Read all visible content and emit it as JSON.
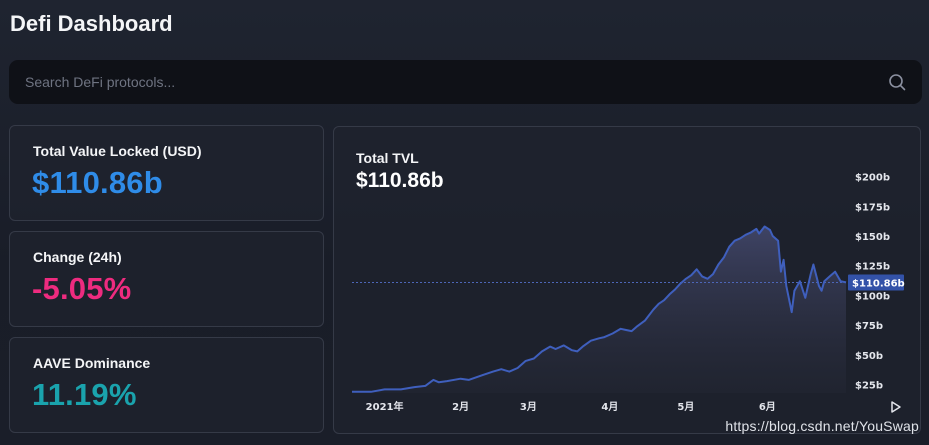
{
  "app": {
    "title": "Defi Dashboard"
  },
  "search": {
    "placeholder": "Search DeFi protocols..."
  },
  "cards": [
    {
      "label": "Total Value Locked (USD)",
      "value": "$110.86b",
      "color": "#2f8ce8"
    },
    {
      "label": "Change (24h)",
      "value": "-5.05%",
      "color": "#ee2b7f"
    },
    {
      "label": "AAVE Dominance",
      "value": "11.19%",
      "color": "#1aa3ad"
    }
  ],
  "chart": {
    "title": "Total TVL",
    "current_value": "$110.86b",
    "price_tag": "$110.86b"
  },
  "watermark": "https://blog.csdn.net/YouSwap",
  "colors": {
    "line": "#3f5fbd",
    "tag_bg": "#3352a8",
    "axis_text": "#e4e6ec"
  },
  "chart_data": {
    "type": "area",
    "x_tick_labels": [
      "2021年",
      "2月",
      "3月",
      "4月",
      "5月",
      "6月"
    ],
    "y_tick_labels": [
      "$200b",
      "$175b",
      "$150b",
      "$125b",
      "$100b",
      "$75b",
      "$50b",
      "$25b"
    ],
    "y_ticks": [
      200,
      175,
      150,
      125,
      100,
      75,
      50,
      25
    ],
    "ylim": [
      18,
      208
    ],
    "xlim": [
      -15,
      167
    ],
    "current_value": 110.86,
    "current_label": "$110.86b",
    "series": [
      {
        "values": [
          [
            -15,
            19
          ],
          [
            -8,
            19
          ],
          [
            -3,
            21
          ],
          [
            3,
            21
          ],
          [
            8,
            23
          ],
          [
            12,
            24
          ],
          [
            15,
            29
          ],
          [
            17,
            27
          ],
          [
            20,
            28
          ],
          [
            25,
            30
          ],
          [
            28,
            29
          ],
          [
            33,
            33
          ],
          [
            37,
            36
          ],
          [
            40,
            38
          ],
          [
            43,
            36
          ],
          [
            46,
            39
          ],
          [
            49,
            45
          ],
          [
            52,
            47
          ],
          [
            55,
            53
          ],
          [
            58,
            57
          ],
          [
            60,
            55
          ],
          [
            63,
            58
          ],
          [
            66,
            54
          ],
          [
            68,
            53
          ],
          [
            70,
            57
          ],
          [
            73,
            62
          ],
          [
            76,
            64
          ],
          [
            78,
            65
          ],
          [
            81,
            68
          ],
          [
            84,
            72
          ],
          [
            86,
            71
          ],
          [
            88,
            70
          ],
          [
            90,
            74
          ],
          [
            93,
            79
          ],
          [
            96,
            88
          ],
          [
            98,
            93
          ],
          [
            100,
            96
          ],
          [
            102,
            101
          ],
          [
            104,
            105
          ],
          [
            106,
            110
          ],
          [
            108,
            114
          ],
          [
            110,
            117
          ],
          [
            112,
            122
          ],
          [
            114,
            116
          ],
          [
            116,
            114
          ],
          [
            118,
            118
          ],
          [
            120,
            126
          ],
          [
            122,
            132
          ],
          [
            124,
            141
          ],
          [
            126,
            146
          ],
          [
            128,
            148
          ],
          [
            130,
            151
          ],
          [
            132,
            153
          ],
          [
            134,
            156
          ],
          [
            135,
            152
          ],
          [
            137,
            158
          ],
          [
            139,
            155
          ],
          [
            140,
            150
          ],
          [
            142,
            146
          ],
          [
            143,
            120
          ],
          [
            144,
            130
          ],
          [
            145,
            108
          ],
          [
            147,
            86
          ],
          [
            148,
            104
          ],
          [
            150,
            112
          ],
          [
            152,
            98
          ],
          [
            154,
            118
          ],
          [
            155,
            126
          ],
          [
            157,
            108
          ],
          [
            158,
            104
          ],
          [
            159,
            112
          ],
          [
            161,
            116
          ],
          [
            163,
            120
          ],
          [
            165,
            112
          ],
          [
            167,
            111
          ]
        ]
      }
    ]
  }
}
